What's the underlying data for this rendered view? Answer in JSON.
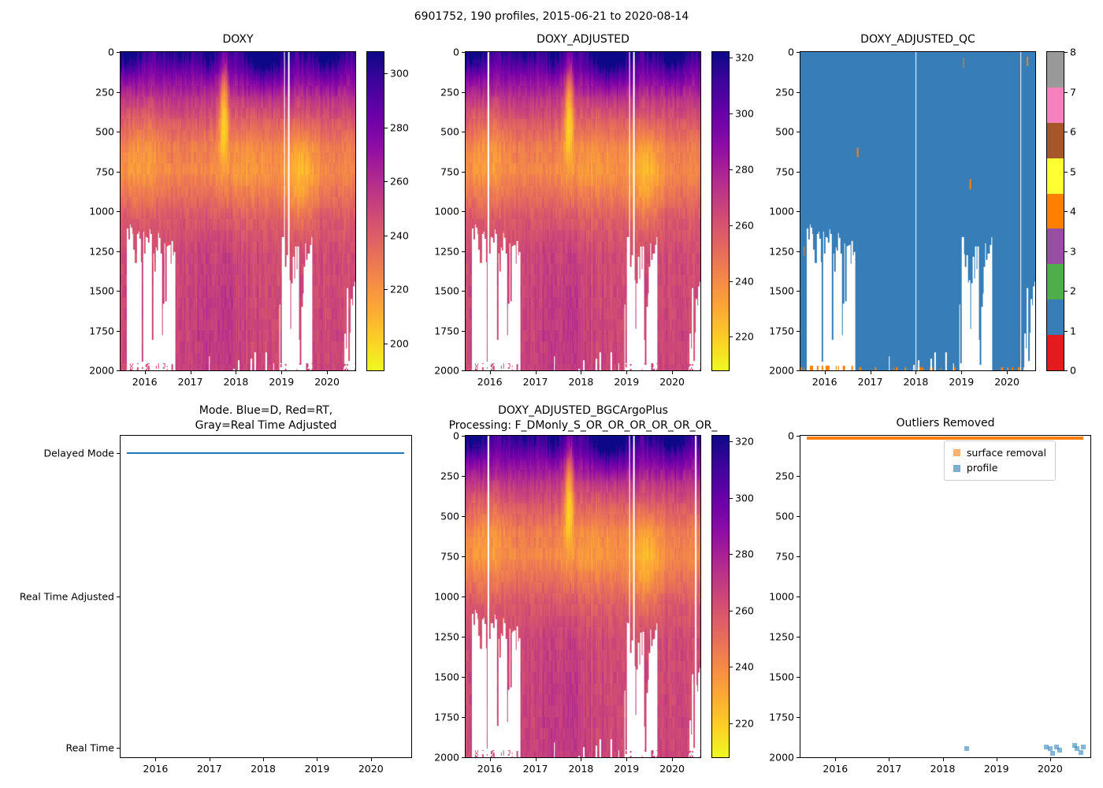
{
  "figure": {
    "suptitle": "6901752, 190 profiles, 2015-06-21 to 2020-08-14",
    "background": "#ffffff",
    "platform_id": "6901752",
    "n_profiles": 190,
    "date_range": [
      "2015-06-21",
      "2020-08-14"
    ]
  },
  "plasma_stops": [
    "#0d0887",
    "#41049d",
    "#6a00a8",
    "#8f0da4",
    "#b12a90",
    "#cc4778",
    "#e16462",
    "#f2844b",
    "#fca636",
    "#fcce25",
    "#f0f921"
  ],
  "coverage": {
    "profiles": 190,
    "max_depth": 2000,
    "deep_gaps": [
      {
        "t": [
          2015.6,
          2016.65
        ],
        "min": 1060,
        "max": 1330,
        "deep_chance": 0.18
      },
      {
        "t": [
          2018.95,
          2019.68
        ],
        "min": 1090,
        "max": 1480,
        "deep_chance": 0.15
      },
      {
        "t": [
          2020.35,
          2020.62
        ],
        "min": 1350,
        "max": 1620,
        "deep_chance": 0.3
      }
    ]
  },
  "chart_data": [
    {
      "id": "doxy",
      "type": "heatmap",
      "title": "DOXY",
      "x_range": [
        2015.47,
        2020.62
      ],
      "x_ticks": [
        2016,
        2017,
        2018,
        2019,
        2020
      ],
      "y_range": [
        0,
        2000
      ],
      "y_ticks": [
        0,
        250,
        500,
        750,
        1000,
        1250,
        1500,
        1750,
        2000
      ],
      "colormap": "plasma reversed (high = dark blue-purple, low = yellow)",
      "colorbar_ticks": [
        200,
        220,
        240,
        260,
        280,
        300
      ],
      "colorbar_range": [
        190,
        308
      ],
      "missing_profile_times": [
        2019.07,
        2019.16
      ],
      "pattern": "~295 near surface (dark purple), oxygen minimum ~200-230 (yellow/orange) at 450-950 m, ~245-250 (pink-magenta) below 1100 m; white = no data"
    },
    {
      "id": "doxy_adjusted",
      "type": "heatmap",
      "title": "DOXY_ADJUSTED",
      "x_range": [
        2015.47,
        2020.62
      ],
      "x_ticks": [
        2016,
        2017,
        2018,
        2019,
        2020
      ],
      "y_range": [
        0,
        2000
      ],
      "y_ticks": [
        0,
        250,
        500,
        750,
        1000,
        1250,
        1500,
        1750,
        2000
      ],
      "colormap": "plasma reversed (high = dark blue-purple, low = yellow)",
      "colorbar_ticks": [
        220,
        240,
        260,
        280,
        300,
        320
      ],
      "colorbar_range": [
        208,
        322
      ],
      "missing_profile_times": [
        2015.97,
        2019.07,
        2019.16
      ],
      "pattern": "same structure as DOXY shifted to higher values (max ~320)"
    },
    {
      "id": "doxy_adjusted_qc",
      "type": "heatmap",
      "title": "DOXY_ADJUSTED_QC",
      "x_range": [
        2015.47,
        2020.62
      ],
      "x_ticks": [
        2016,
        2017,
        2018,
        2019,
        2020
      ],
      "y_range": [
        0,
        2000
      ],
      "y_ticks": [
        0,
        250,
        500,
        750,
        1000,
        1250,
        1500,
        1750,
        2000
      ],
      "colorbar_ticks": [
        0,
        1,
        2,
        3,
        4,
        5,
        6,
        7,
        8
      ],
      "qc_colors": [
        "#e41a1c",
        "#377eb8",
        "#4daf4a",
        "#984ea3",
        "#ff7f00",
        "#ffff33",
        "#a65628",
        "#f781bf",
        "#999999"
      ],
      "dominant_qc": 1,
      "minor_qc": 4,
      "orange_spots": [
        [
          2015.55,
          1250
        ],
        [
          2016.72,
          630
        ],
        [
          2019.05,
          70
        ],
        [
          2019.2,
          830
        ],
        [
          2020.45,
          60
        ]
      ],
      "missing_profile_times": [
        2018.0,
        2020.3
      ],
      "note": "nearly all points QC=1 (blue); scattered QC=4 (orange) specks near the bottom of profiles and a few isolated mid-depth spots; white = no data"
    },
    {
      "id": "mode",
      "type": "line",
      "title_line1": "Mode. Blue=D, Red=RT,",
      "title_line2": "Gray=Real Time Adjusted",
      "x_range": [
        2015.35,
        2020.75
      ],
      "x_ticks": [
        2016,
        2017,
        2018,
        2019,
        2020
      ],
      "y_categories": [
        "Delayed Mode",
        "Real Time Adjusted",
        "Real Time"
      ],
      "series": [
        {
          "name": "mode",
          "color": "#1f77b4",
          "value": "Delayed Mode",
          "t_span": [
            2015.47,
            2020.62
          ],
          "note": "all 190 profiles are Delayed Mode (solid blue line at Delayed Mode level)"
        }
      ]
    },
    {
      "id": "doxy_adjusted_bgcargoplus",
      "type": "heatmap",
      "title_line1": "DOXY_ADJUSTED_BGCArgoPlus",
      "title_line2": "Processing: F_DMonly_S_OR_OR_OR_OR_OR_OR_",
      "x_range": [
        2015.47,
        2020.62
      ],
      "x_ticks": [
        2016,
        2017,
        2018,
        2019,
        2020
      ],
      "y_range": [
        0,
        2000
      ],
      "y_ticks": [
        0,
        250,
        500,
        750,
        1000,
        1250,
        1500,
        1750,
        2000
      ],
      "colormap": "plasma reversed (high = dark blue-purple, low = yellow)",
      "colorbar_ticks": [
        220,
        240,
        260,
        280,
        300,
        320
      ],
      "colorbar_range": [
        208,
        322
      ],
      "missing_profile_times": [
        2015.97,
        2019.07,
        2019.16,
        2020.52
      ],
      "pattern": "same field as DOXY_ADJUSTED"
    },
    {
      "id": "outliers_removed",
      "type": "scatter",
      "title": "Outliers Removed",
      "x_range": [
        2015.35,
        2020.75
      ],
      "x_ticks": [
        2016,
        2017,
        2018,
        2019,
        2020
      ],
      "y_range": [
        0,
        2000
      ],
      "y_ticks": [
        0,
        250,
        500,
        750,
        1000,
        1250,
        1500,
        1750,
        2000
      ],
      "legend_loc": "upper right",
      "series": [
        {
          "name": "surface removal",
          "color": "#ff7f0e",
          "marker": "square",
          "band_depth": 0,
          "t_span": [
            2015.47,
            2020.62
          ],
          "note": "continuous orange band at 0 m across the whole record"
        },
        {
          "name": "profile",
          "color": "#1f77b4",
          "marker": "square",
          "points": [
            [
              2018.45,
              1960
            ],
            [
              2019.93,
              1950
            ],
            [
              2020.0,
              1962
            ],
            [
              2020.05,
              1988
            ],
            [
              2020.12,
              1950
            ],
            [
              2020.18,
              1968
            ],
            [
              2020.45,
              1942
            ],
            [
              2020.5,
              1958
            ],
            [
              2020.57,
              1985
            ],
            [
              2020.62,
              1948
            ]
          ]
        }
      ]
    }
  ]
}
